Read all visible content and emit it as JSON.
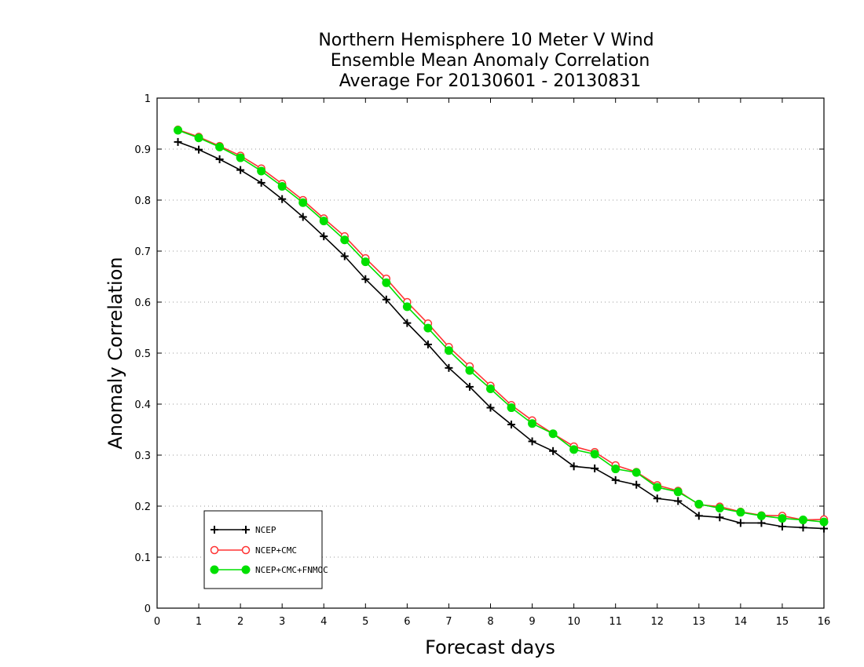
{
  "chart_data": {
    "type": "line",
    "title": [
      "Northern Hemisphere 10 Meter V Wind",
      "Ensemble Mean Anomaly Correlation",
      "Average For 20130601 - 20130831"
    ],
    "xlabel": "Forecast days",
    "ylabel": "Anomaly Correlation",
    "xlim": [
      0,
      16
    ],
    "ylim": [
      0,
      1
    ],
    "xticks": [
      "0",
      "1",
      "2",
      "3",
      "4",
      "5",
      "6",
      "7",
      "8",
      "9",
      "10",
      "11",
      "12",
      "13",
      "14",
      "15",
      "16"
    ],
    "yticks": [
      "0",
      "0.1",
      "0.2",
      "0.3",
      "0.4",
      "0.5",
      "0.6",
      "0.7",
      "0.8",
      "0.9",
      "1"
    ],
    "grid": "horizontal dotted",
    "legend_position": "bottom-left",
    "x": [
      0.5,
      1,
      1.5,
      2,
      2.5,
      3,
      3.5,
      4,
      4.5,
      5,
      5.5,
      6,
      6.5,
      7,
      7.5,
      8,
      8.5,
      9,
      9.5,
      10,
      10.5,
      11,
      11.5,
      12,
      12.5,
      13,
      13.5,
      14,
      14.5,
      15,
      15.5,
      16
    ],
    "series": [
      {
        "name": "NCEP",
        "color": "#000000",
        "marker": "plus",
        "values": [
          0.914,
          0.899,
          0.88,
          0.859,
          0.834,
          0.802,
          0.767,
          0.729,
          0.69,
          0.645,
          0.605,
          0.559,
          0.517,
          0.471,
          0.434,
          0.393,
          0.36,
          0.327,
          0.308,
          0.278,
          0.274,
          0.251,
          0.242,
          0.215,
          0.21,
          0.181,
          0.178,
          0.167,
          0.167,
          0.16,
          0.158,
          0.156
        ]
      },
      {
        "name": "NCEP+CMC",
        "color": "#ff3333",
        "marker": "open-circle",
        "values": [
          0.938,
          0.924,
          0.906,
          0.887,
          0.862,
          0.832,
          0.8,
          0.764,
          0.729,
          0.686,
          0.646,
          0.6,
          0.558,
          0.512,
          0.474,
          0.436,
          0.398,
          0.368,
          0.342,
          0.317,
          0.306,
          0.28,
          0.267,
          0.241,
          0.23,
          0.203,
          0.199,
          0.189,
          0.182,
          0.181,
          0.173,
          0.174
        ]
      },
      {
        "name": "NCEP+CMC+FNMOC",
        "color": "#00e000",
        "marker": "filled-circle",
        "values": [
          0.937,
          0.922,
          0.904,
          0.883,
          0.857,
          0.827,
          0.795,
          0.759,
          0.722,
          0.679,
          0.638,
          0.591,
          0.549,
          0.505,
          0.466,
          0.43,
          0.393,
          0.362,
          0.342,
          0.311,
          0.302,
          0.273,
          0.266,
          0.237,
          0.228,
          0.204,
          0.196,
          0.188,
          0.181,
          0.176,
          0.173,
          0.169
        ]
      }
    ]
  }
}
